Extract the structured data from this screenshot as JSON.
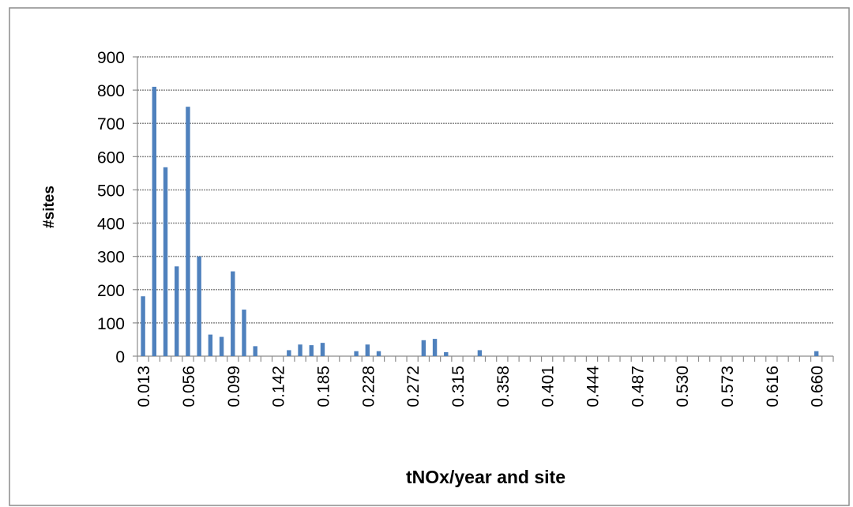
{
  "chart_data": {
    "type": "bar",
    "x_label": "tNOx/year and site",
    "y_label": "#sites",
    "categories": [
      "0.013",
      null,
      null,
      null,
      "0.056",
      null,
      null,
      null,
      "0.099",
      null,
      null,
      null,
      "0.142",
      null,
      null,
      null,
      "0.185",
      null,
      null,
      null,
      "0.228",
      null,
      null,
      null,
      "0.272",
      null,
      null,
      null,
      "0.315",
      null,
      null,
      null,
      "0.358",
      null,
      null,
      null,
      "0.401",
      null,
      null,
      null,
      "0.444",
      null,
      null,
      null,
      "0.487",
      null,
      null,
      null,
      "0.530",
      null,
      null,
      null,
      "0.573",
      null,
      null,
      null,
      "0.616",
      null,
      null,
      null,
      "0.660",
      null
    ],
    "values": [
      180,
      810,
      568,
      270,
      750,
      300,
      65,
      58,
      255,
      140,
      30,
      0,
      0,
      18,
      35,
      33,
      40,
      0,
      0,
      15,
      35,
      15,
      0,
      0,
      0,
      48,
      52,
      12,
      0,
      0,
      18,
      0,
      0,
      0,
      0,
      0,
      0,
      0,
      0,
      0,
      0,
      0,
      0,
      0,
      0,
      0,
      0,
      0,
      0,
      0,
      0,
      0,
      0,
      0,
      0,
      0,
      0,
      0,
      0,
      0,
      15,
      0
    ],
    "color": "#4f81bd",
    "ylim": [
      0,
      900
    ],
    "yticks": [
      0,
      100,
      200,
      300,
      400,
      500,
      600,
      700,
      800,
      900
    ],
    "grid": true
  }
}
